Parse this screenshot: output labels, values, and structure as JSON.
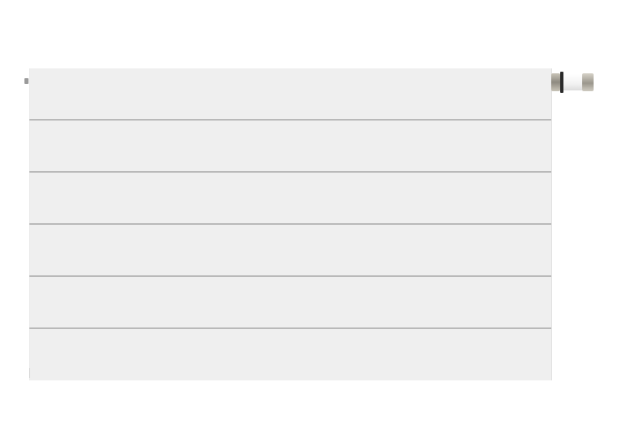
{
  "image": {
    "subject": "panel radiator",
    "colors": {
      "background": "#ffffff",
      "panel": "#efefef",
      "groove": "#b9b9b9",
      "valve_metal": "#a8a498",
      "valve_body": "#f5f5f5",
      "valve_ring": "#2a2a2a"
    },
    "parts": [
      "front-panel",
      "horizontal-grooves",
      "bleed-vent",
      "thermostatic-valve"
    ]
  }
}
